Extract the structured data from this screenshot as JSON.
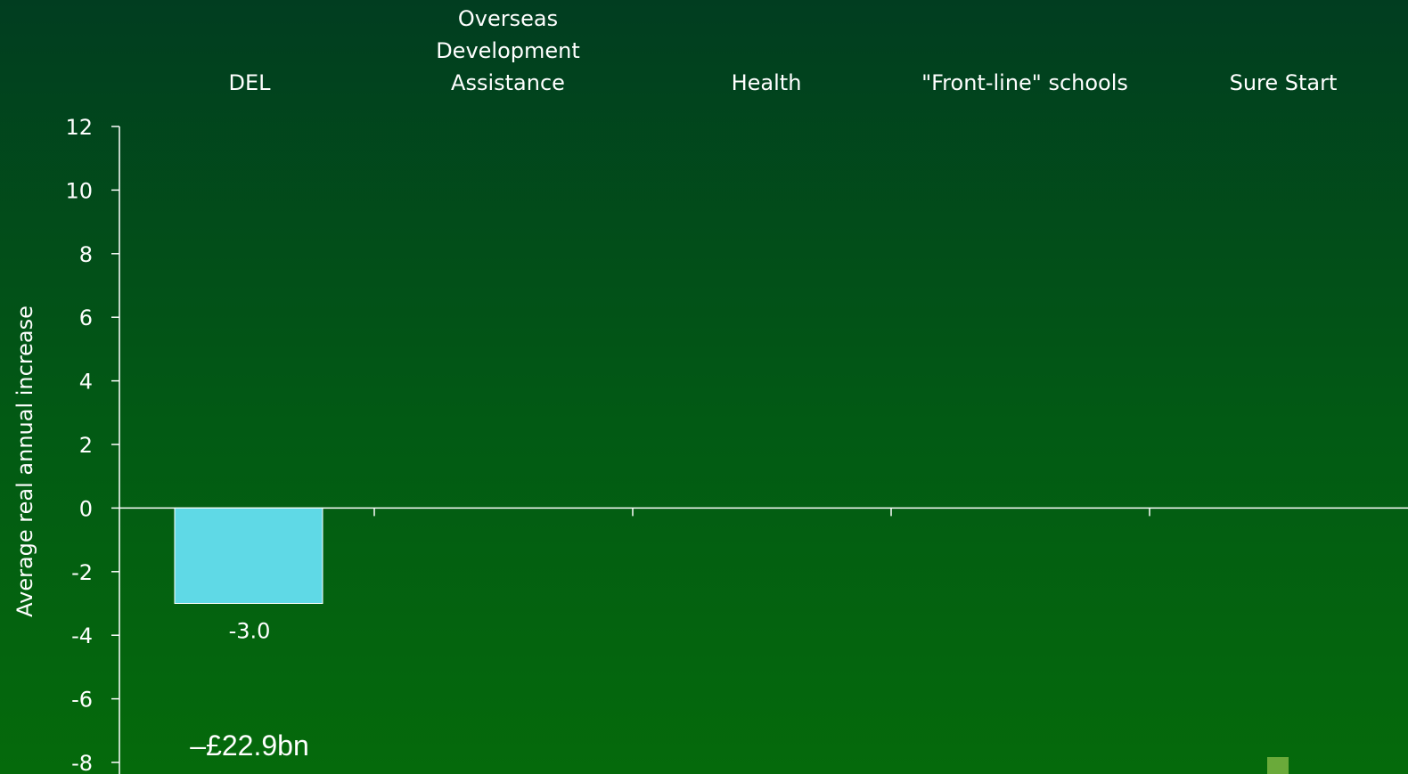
{
  "chart_data": {
    "type": "bar",
    "categories": [
      [
        "DEL"
      ],
      [
        "Overseas",
        "Development",
        "Assistance"
      ],
      [
        "Health"
      ],
      [
        "\"Front-line\" schools"
      ],
      [
        "Sure Start"
      ]
    ],
    "category_labels": [
      "DEL",
      "Overseas Development Assistance",
      "Health",
      "\"Front-line\" schools",
      "Sure Start"
    ],
    "series": [
      {
        "values": [
          -3.0,
          null,
          null,
          null,
          null
        ]
      }
    ],
    "data_labels": [
      "-3.0",
      "",
      "",
      "",
      ""
    ],
    "ylabel": "Average real annual increase",
    "ylim": [
      -8,
      12
    ],
    "yticks": [
      12,
      10,
      8,
      6,
      4,
      2,
      0,
      -2,
      -4,
      -6,
      -8
    ],
    "annotation": "–£22.9bn",
    "grid": false,
    "colors": {
      "bar": "#5fd9e6",
      "axis": "#ffffff",
      "legend_swatch": "#6aaa3a"
    }
  }
}
